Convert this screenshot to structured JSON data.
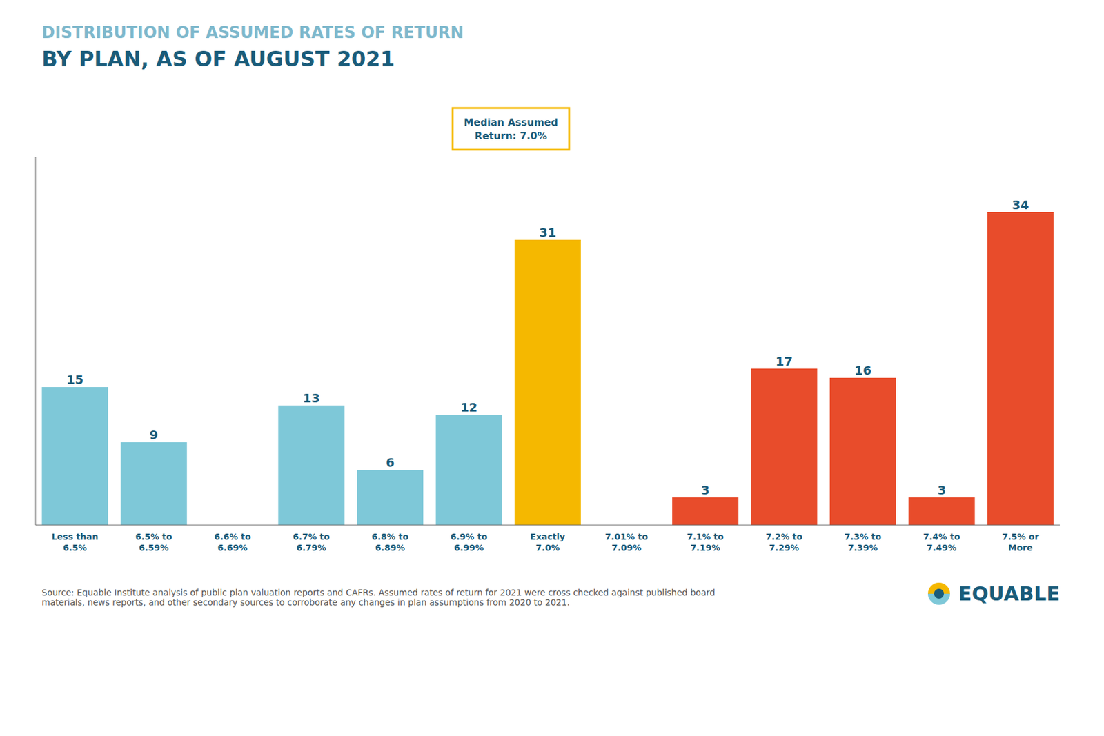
{
  "chart_data": {
    "type": "bar",
    "title": "DISTRIBUTION OF ASSUMED RATES OF RETURN",
    "subtitle": "BY PLAN, AS OF AUGUST 2021",
    "categories": [
      "Less than\n6.5%",
      "6.5% to\n6.59%",
      "6.6% to\n6.69%",
      "6.7% to\n6.79%",
      "6.8% to\n6.89%",
      "6.9% to\n6.99%",
      "Exactly\n7.0%",
      "7.01% to\n7.09%",
      "7.1% to\n7.19%",
      "7.2% to\n7.29%",
      "7.3% to\n7.39%",
      "7.4% to\n7.49%",
      "7.5% or\nMore"
    ],
    "values": [
      15,
      9,
      0,
      13,
      6,
      12,
      31,
      0,
      3,
      17,
      16,
      3,
      34
    ],
    "colors": [
      "#7EC8D8",
      "#7EC8D8",
      "#7EC8D8",
      "#7EC8D8",
      "#7EC8D8",
      "#7EC8D8",
      "#F5B800",
      "#E84C2B",
      "#E84C2B",
      "#E84C2B",
      "#E84C2B",
      "#E84C2B",
      "#E84C2B"
    ],
    "ylim": [
      0,
      40
    ],
    "grid": false,
    "data_labels": true,
    "tick_labels": "x",
    "annotations": [
      {
        "text": "Median Assumed\nReturn: 7.0%",
        "x": "Exactly\n7.0%"
      },
      {
        "text": "Source: Equable Institute analysis of public plan valuation reports and CAFRs. Assumed rates of return for 2021 were cross checked against published board\nmaterials, news reports, and other secondary sources to corroborate any changes in plan assumptions from 2020 to 2021."
      },
      {
        "text": "EQUABLE"
      }
    ]
  }
}
